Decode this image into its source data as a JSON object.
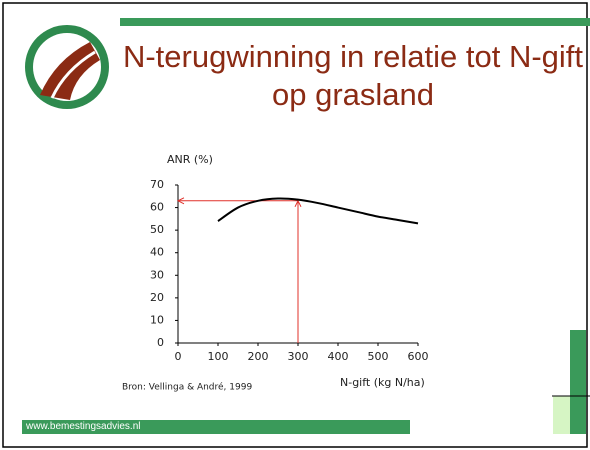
{
  "chart_data": {
    "type": "line",
    "title": "N-terugwinning in relatie tot N-gift op grasland",
    "y_label": "ANR (%)",
    "x_label": "N-gift (kg N/ha)",
    "source": "Bron: Vellinga & André, 1999",
    "footer": "www.bemestingsadvies.nl",
    "x": [
      100,
      150,
      200,
      250,
      300,
      350,
      400,
      450,
      500,
      550,
      600
    ],
    "series": [
      {
        "name": "ANR",
        "color": "#000000",
        "values": [
          54,
          60,
          63,
          64,
          63.5,
          62,
          60,
          58,
          56,
          54.5,
          53
        ]
      }
    ],
    "xlim": [
      0,
      600
    ],
    "xticks": [
      0,
      100,
      200,
      300,
      400,
      500,
      600
    ],
    "ylim": [
      0,
      70
    ],
    "yticks": [
      0,
      10,
      20,
      30,
      40,
      50,
      60,
      70
    ],
    "reference_point": {
      "x": 300,
      "y": 63,
      "color": "#e0302a"
    }
  }
}
